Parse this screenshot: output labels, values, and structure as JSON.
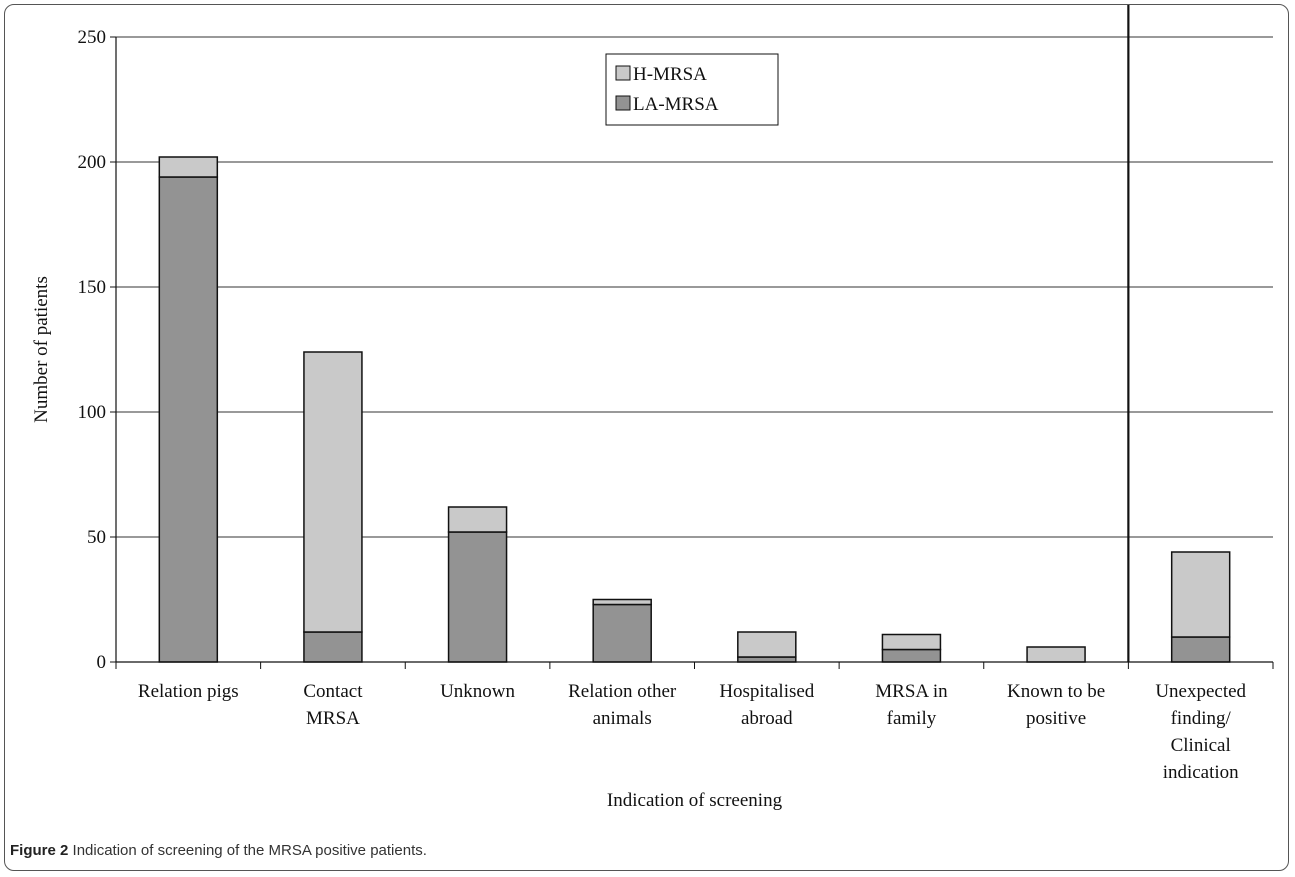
{
  "figure": {
    "caption_label": "Figure 2",
    "caption_text": "Indication of screening of the MRSA positive patients."
  },
  "chart_data": {
    "type": "bar",
    "stacked": true,
    "categories": [
      [
        "Relation pigs"
      ],
      [
        "Contact",
        "MRSA"
      ],
      [
        "Unknown"
      ],
      [
        "Relation other",
        "animals"
      ],
      [
        "Hospitalised",
        "abroad"
      ],
      [
        "MRSA in",
        "family"
      ],
      [
        "Known to be",
        "positive"
      ],
      [
        "Unexpected",
        "finding/",
        "Clinical",
        "indication"
      ]
    ],
    "series": [
      {
        "name": "LA-MRSA",
        "color": "#939393",
        "values": [
          194,
          12,
          52,
          23,
          2,
          5,
          0,
          10
        ]
      },
      {
        "name": "H-MRSA",
        "color": "#c9c9c9",
        "values": [
          8,
          112,
          10,
          2,
          10,
          6,
          6,
          34
        ]
      }
    ],
    "legend_order": [
      "H-MRSA",
      "LA-MRSA"
    ],
    "legend_position": "top-center",
    "xlabel": "Indication of screening",
    "ylabel": "Number of patients",
    "ylim": [
      0,
      250
    ],
    "yticks": [
      0,
      50,
      100,
      150,
      200,
      250
    ],
    "grid": true,
    "separator_after_index": 6
  }
}
